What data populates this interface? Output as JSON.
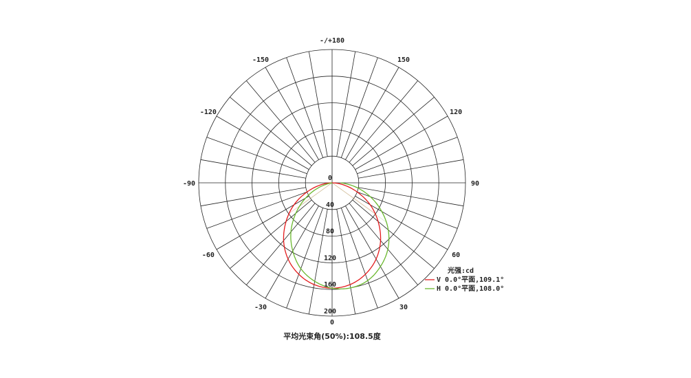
{
  "chart_data": {
    "type": "polar",
    "title": "平均光束角(50%):108.5度",
    "radial_axis": {
      "ticks": [
        0,
        40,
        80,
        120,
        160,
        200
      ],
      "range": [
        0,
        200
      ]
    },
    "angular_axis": {
      "spoke_step_deg": 10,
      "tick_labels": [
        {
          "angle": 0,
          "label": "0"
        },
        {
          "angle": 30,
          "label": "30"
        },
        {
          "angle": 60,
          "label": "60"
        },
        {
          "angle": 90,
          "label": "90"
        },
        {
          "angle": 120,
          "label": "120"
        },
        {
          "angle": 150,
          "label": "150"
        },
        {
          "angle": 180,
          "label": "-/+180"
        },
        {
          "angle": -150,
          "label": "-150"
        },
        {
          "angle": -120,
          "label": "-120"
        },
        {
          "angle": -90,
          "label": "-90"
        },
        {
          "angle": -60,
          "label": "-60"
        },
        {
          "angle": -30,
          "label": "-30"
        }
      ]
    },
    "legend": {
      "title": "光强:cd",
      "placement": "bottom-right"
    },
    "angles": [
      -90,
      -80,
      -70,
      -60,
      -50,
      -40,
      -30,
      -20,
      -10,
      0,
      10,
      20,
      30,
      40,
      50,
      60,
      70,
      80,
      90
    ],
    "series": [
      {
        "name": "V 0.0°平面,109.1°",
        "color": "#e31a1c",
        "beam_angle": 109.1,
        "values": [
          0,
          17,
          40,
          66,
          90,
          113,
          132,
          146,
          155,
          158,
          155,
          146,
          132,
          113,
          90,
          66,
          40,
          17,
          0
        ]
      },
      {
        "name": "H 0.0°平面,108.0°",
        "color": "#6ab82e",
        "beam_angle": 108.0,
        "values": [
          0,
          2,
          22,
          46,
          71,
          96,
          118,
          137,
          150,
          158,
          160,
          156,
          145,
          130,
          110,
          86,
          61,
          36,
          13
        ]
      }
    ]
  }
}
